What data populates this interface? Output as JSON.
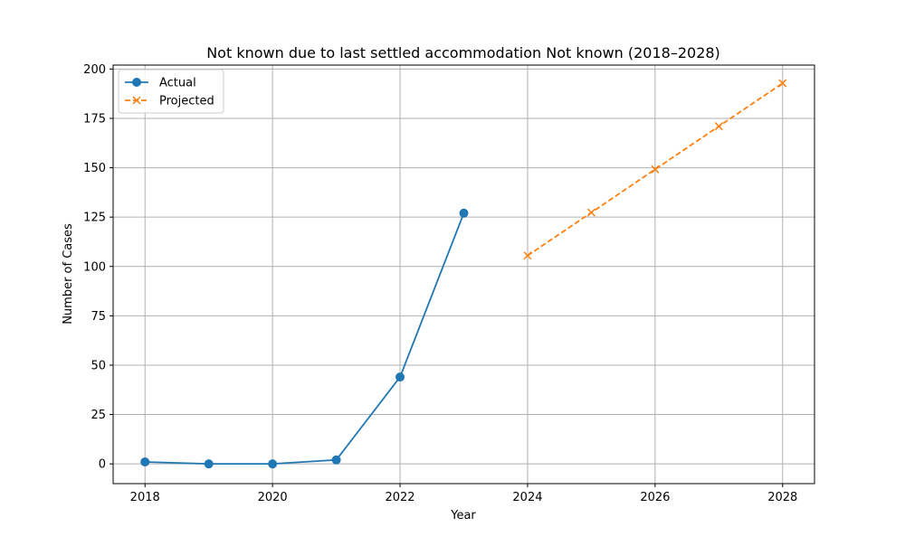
{
  "chart_data": {
    "type": "line",
    "title": "Not known due to last settled accommodation Not known (2018–2028)",
    "xlabel": "Year",
    "ylabel": "Number of Cases",
    "xlim": [
      2017.5,
      2028.5
    ],
    "ylim": [
      -10,
      202
    ],
    "xticks": [
      2018,
      2020,
      2022,
      2024,
      2026,
      2028
    ],
    "yticks": [
      0,
      25,
      50,
      75,
      100,
      125,
      150,
      175,
      200
    ],
    "grid": true,
    "legend_position": "top-left",
    "series": [
      {
        "name": "Actual",
        "color": "#1f77b4",
        "line_style": "solid",
        "marker": "circle",
        "x": [
          2018,
          2019,
          2020,
          2021,
          2022,
          2023
        ],
        "y": [
          1,
          0,
          0,
          2,
          44,
          127
        ]
      },
      {
        "name": "Projected",
        "color": "#ff7f0e",
        "line_style": "dashed",
        "marker": "x",
        "x": [
          2024,
          2025,
          2026,
          2027,
          2028
        ],
        "y": [
          105.5,
          127.3,
          149.2,
          171.0,
          192.8
        ]
      }
    ]
  }
}
